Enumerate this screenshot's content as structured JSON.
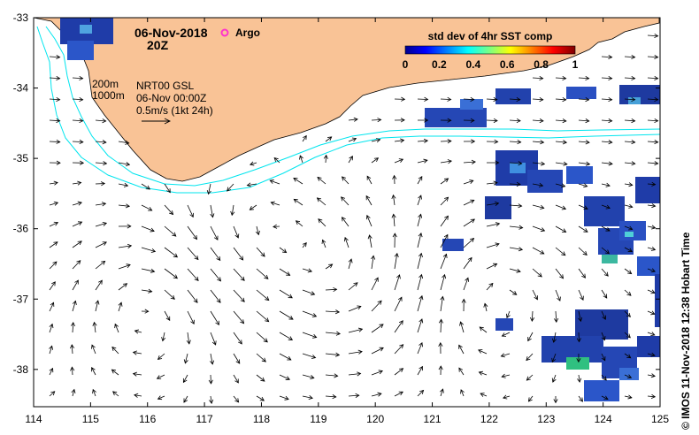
{
  "header": {
    "date": "06-Nov-2018",
    "hour": "20Z",
    "argo_label": "Argo"
  },
  "info": {
    "depth_200": "200m",
    "depth_1000": "1000m",
    "product": "NRT00 GSL",
    "product_time": "06-Nov 00:00Z",
    "scale_label": "0.5m/s (1kt 24h)"
  },
  "colorbar": {
    "title": "std dev of 4hr SST comp",
    "ticks": [
      "0",
      "0.2",
      "0.4",
      "0.6",
      "0.8",
      "1"
    ]
  },
  "axes": {
    "x_ticks": [
      "114",
      "115",
      "116",
      "117",
      "118",
      "119",
      "120",
      "121",
      "122",
      "123",
      "124",
      "125"
    ],
    "y_ticks": [
      "-33",
      "-34",
      "-35",
      "-36",
      "-37",
      "-38"
    ],
    "lon_range": [
      114,
      125
    ],
    "lat_range": [
      -33,
      -38.5
    ]
  },
  "credit": "© IMOS 11-Nov-2018 12:38 Hobart Time",
  "colors": {
    "land": "#f9c396",
    "contour": "#00e5ee",
    "argo": "#ff33cc"
  }
}
